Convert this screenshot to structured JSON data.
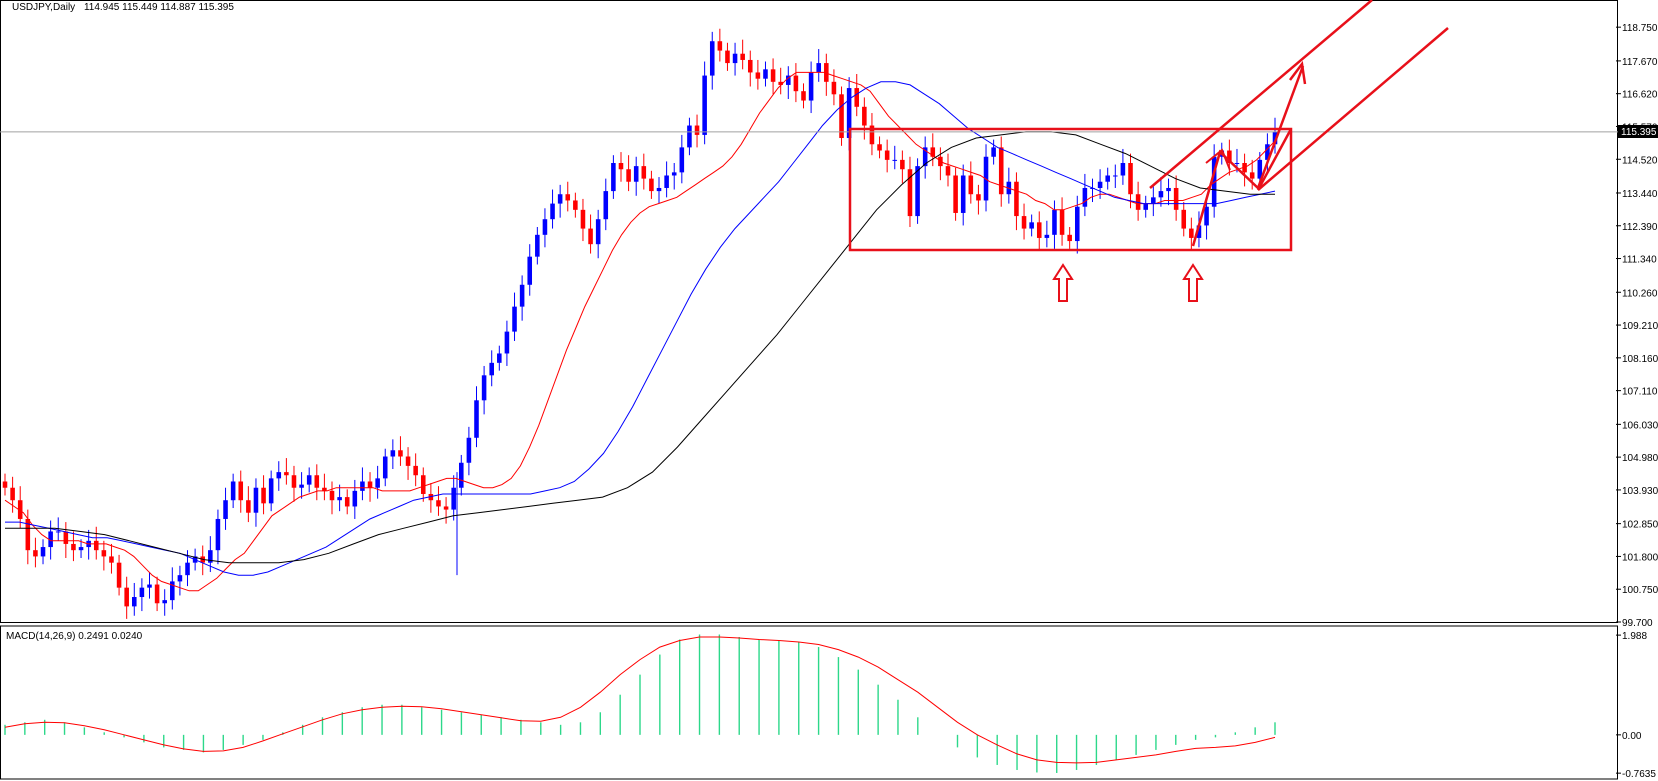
{
  "main_header": {
    "symbol_label": "USDJPY,Daily",
    "ohlc": "114.945 115.449 114.887 115.395"
  },
  "sub_header": {
    "label": "MACD(14,26,9) 0.2491 0.0240"
  },
  "current_price_label": "115.395",
  "colors": {
    "bull": "#0000ff",
    "bear": "#ff0000",
    "ma_fast": "#ff0000",
    "ma_mid": "#0000ff",
    "ma_slow": "#000000",
    "annotation": "#e8101a",
    "macd_hist": "#2cd88a",
    "macd_signal": "#ff0000"
  },
  "chart_data": [
    {
      "type": "candlestick",
      "title": "USDJPY,Daily",
      "ylim": [
        99.7,
        119.3
      ],
      "y_ticks": [
        "118.750",
        "117.670",
        "116.620",
        "115.570",
        "114.520",
        "113.440",
        "112.390",
        "111.340",
        "110.260",
        "109.210",
        "108.160",
        "107.110",
        "106.030",
        "104.980",
        "103.930",
        "102.850",
        "101.800",
        "100.750",
        "99.700"
      ],
      "current_price": 115.395,
      "close": [
        104.0,
        103.6,
        103.0,
        102.0,
        101.8,
        102.1,
        102.6,
        102.6,
        102.2,
        102.0,
        102.1,
        102.3,
        102.0,
        101.8,
        101.6,
        100.8,
        100.2,
        100.5,
        100.8,
        100.9,
        100.3,
        100.4,
        101.0,
        101.2,
        101.6,
        101.8,
        101.6,
        102.0,
        103.0,
        103.6,
        104.2,
        103.6,
        103.2,
        104.0,
        103.5,
        104.3,
        104.5,
        104.4,
        104.0,
        104.1,
        104.4,
        104.0,
        103.9,
        103.6,
        103.7,
        103.4,
        103.9,
        104.2,
        104.0,
        104.3,
        105.0,
        105.2,
        105.0,
        104.7,
        104.4,
        103.8,
        103.6,
        103.4,
        103.3,
        104.0,
        104.8,
        105.6,
        106.8,
        107.6,
        108.0,
        108.3,
        109.0,
        109.8,
        110.5,
        111.4,
        112.1,
        112.6,
        113.1,
        113.4,
        113.2,
        112.9,
        112.3,
        111.8,
        112.6,
        113.5,
        114.4,
        114.2,
        113.8,
        114.3,
        113.9,
        113.5,
        113.6,
        114.0,
        114.1,
        114.9,
        115.6,
        115.3,
        117.2,
        118.3,
        118.0,
        117.6,
        117.9,
        117.7,
        117.3,
        117.1,
        117.4,
        117.0,
        116.9,
        117.2,
        116.7,
        116.4,
        117.3,
        117.6,
        117.0,
        116.6,
        115.2,
        116.8,
        116.2,
        115.6,
        115.0,
        114.8,
        114.5,
        114.5,
        114.2,
        112.7,
        114.3,
        114.9,
        114.6,
        114.3,
        114.0,
        112.8,
        114.0,
        113.4,
        113.2,
        114.6,
        114.9,
        113.4,
        113.8,
        112.7,
        112.3,
        112.5,
        112.0,
        112.1,
        112.9,
        112.1,
        111.9,
        113.0,
        113.6,
        113.6,
        113.8,
        114.0,
        114.0,
        114.4,
        113.4,
        112.9,
        113.1,
        113.3,
        113.5,
        113.6,
        112.9,
        112.3,
        112.0,
        112.4,
        113.0,
        114.6,
        114.8,
        114.4,
        114.4,
        114.1,
        113.9,
        114.5,
        115.0,
        115.4
      ],
      "ma_fast": [
        103.6,
        103.4,
        103.2,
        102.8,
        102.5,
        102.3,
        102.3,
        102.3,
        102.3,
        102.2,
        102.2,
        102.2,
        102.1,
        102.0,
        101.8,
        101.5,
        101.2,
        101.0,
        100.9,
        100.8,
        100.7,
        100.7,
        100.9,
        101.1,
        101.4,
        101.7,
        101.9,
        102.3,
        102.7,
        103.1,
        103.3,
        103.5,
        103.7,
        103.8,
        103.9,
        103.9,
        104.0,
        104.0,
        104.0,
        104.0,
        104.0,
        103.9,
        103.9,
        103.9,
        103.9,
        104.0,
        104.1,
        104.2,
        104.3,
        104.3,
        104.2,
        104.1,
        104.0,
        104.0,
        104.1,
        104.3,
        104.7,
        105.3,
        106.0,
        106.8,
        107.6,
        108.4,
        109.1,
        109.8,
        110.4,
        111.0,
        111.6,
        112.1,
        112.5,
        112.8,
        113.0,
        113.1,
        113.2,
        113.3,
        113.5,
        113.7,
        113.9,
        114.1,
        114.3,
        114.6,
        115.0,
        115.5,
        116.0,
        116.4,
        116.8,
        117.1,
        117.3,
        117.3,
        117.3,
        117.3,
        117.2,
        117.1,
        117.0,
        116.9,
        116.7,
        116.3,
        115.9,
        115.6,
        115.3,
        115.0,
        114.8,
        114.6,
        114.4,
        114.3,
        114.2,
        114.1,
        114.0,
        113.8,
        113.7,
        113.6,
        113.5,
        113.4,
        113.2,
        113.1,
        112.9,
        112.9,
        113.0,
        113.1,
        113.3,
        113.4,
        113.4,
        113.3,
        113.2,
        113.1,
        113.1,
        113.1,
        113.2,
        113.2,
        113.2,
        113.3,
        113.4,
        113.7,
        113.9,
        114.1,
        114.2,
        114.3,
        114.5,
        114.8,
        115.1
      ],
      "ma_mid": [
        102.9,
        102.9,
        102.8,
        102.7,
        102.6,
        102.5,
        102.4,
        102.4,
        102.3,
        102.2,
        102.1,
        102.0,
        101.9,
        101.7,
        101.5,
        101.3,
        101.2,
        101.2,
        101.3,
        101.5,
        101.7,
        101.9,
        102.1,
        102.4,
        102.7,
        103.0,
        103.2,
        103.4,
        103.6,
        103.7,
        103.8,
        103.8,
        103.8,
        103.8,
        103.8,
        103.8,
        103.8,
        103.9,
        104.0,
        104.2,
        104.6,
        105.1,
        105.8,
        106.6,
        107.5,
        108.4,
        109.3,
        110.2,
        111.0,
        111.7,
        112.3,
        112.8,
        113.3,
        113.8,
        114.4,
        115.0,
        115.6,
        116.1,
        116.5,
        116.8,
        117.0,
        117.0,
        116.9,
        116.6,
        116.3,
        115.9,
        115.5,
        115.2,
        114.9,
        114.7,
        114.5,
        114.3,
        114.1,
        113.9,
        113.7,
        113.5,
        113.3,
        113.2,
        113.1,
        113.1,
        113.1,
        113.1,
        113.1,
        113.1,
        113.2,
        113.3,
        113.4,
        113.5
      ],
      "ma_slow": [
        102.7,
        102.7,
        102.7,
        102.6,
        102.5,
        102.3,
        102.1,
        101.9,
        101.7,
        101.6,
        101.6,
        101.6,
        101.7,
        101.9,
        102.2,
        102.5,
        102.7,
        102.9,
        103.1,
        103.2,
        103.3,
        103.4,
        103.5,
        103.6,
        103.7,
        104.0,
        104.5,
        105.3,
        106.2,
        107.1,
        108.0,
        108.9,
        109.9,
        110.9,
        111.9,
        112.9,
        113.7,
        114.4,
        114.9,
        115.2,
        115.3,
        115.4,
        115.4,
        115.3,
        115.0,
        114.7,
        114.3,
        113.9,
        113.6,
        113.5,
        113.4,
        113.4
      ]
    },
    {
      "type": "bar",
      "title": "MACD(14,26,9) 0.2491 0.0240",
      "ylim": [
        -0.9,
        2.05
      ],
      "y_ticks": [
        "1.988",
        "0.00",
        "-0.7635"
      ],
      "histogram": [
        0.2,
        0.25,
        0.3,
        0.25,
        0.15,
        0.05,
        -0.05,
        -0.15,
        -0.25,
        -0.3,
        -0.35,
        -0.3,
        -0.2,
        -0.1,
        0.05,
        0.2,
        0.35,
        0.45,
        0.55,
        0.6,
        0.6,
        0.55,
        0.5,
        0.45,
        0.4,
        0.35,
        0.3,
        0.25,
        0.2,
        0.25,
        0.45,
        0.8,
        1.2,
        1.6,
        1.9,
        2.0,
        2.0,
        1.95,
        1.9,
        1.88,
        1.85,
        1.75,
        1.55,
        1.3,
        1.0,
        0.7,
        0.35,
        0.0,
        -0.25,
        -0.45,
        -0.6,
        -0.7,
        -0.75,
        -0.76,
        -0.7,
        -0.6,
        -0.5,
        -0.4,
        -0.3,
        -0.2,
        -0.1,
        -0.05,
        0.05,
        0.15,
        0.25
      ],
      "signal": [
        0.15,
        0.22,
        0.25,
        0.24,
        0.18,
        0.1,
        0.0,
        -0.1,
        -0.2,
        -0.28,
        -0.33,
        -0.32,
        -0.25,
        -0.12,
        0.02,
        0.16,
        0.3,
        0.42,
        0.5,
        0.55,
        0.57,
        0.56,
        0.52,
        0.46,
        0.4,
        0.34,
        0.28,
        0.27,
        0.35,
        0.55,
        0.85,
        1.2,
        1.5,
        1.75,
        1.88,
        1.95,
        1.95,
        1.93,
        1.9,
        1.88,
        1.85,
        1.8,
        1.7,
        1.55,
        1.35,
        1.1,
        0.85,
        0.55,
        0.25,
        0.0,
        -0.2,
        -0.38,
        -0.5,
        -0.55,
        -0.56,
        -0.55,
        -0.5,
        -0.45,
        -0.4,
        -0.33,
        -0.27,
        -0.25,
        -0.22,
        -0.15,
        -0.05
      ]
    }
  ]
}
